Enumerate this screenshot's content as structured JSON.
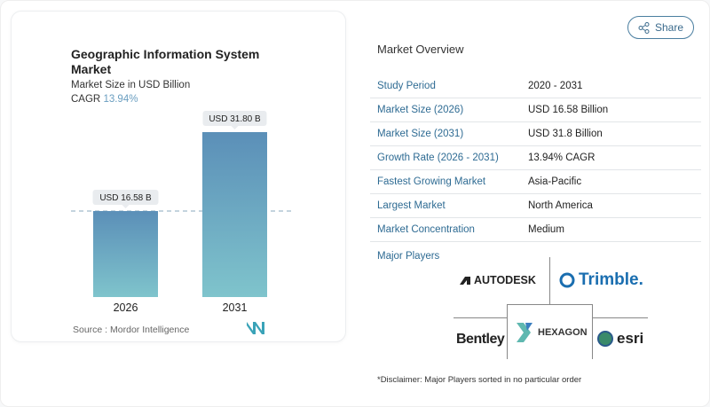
{
  "header": {
    "share_label": "Share",
    "share_icon": "share-icon"
  },
  "chart_data": {
    "type": "bar",
    "title": "Geographic Information System Market",
    "subtitle": "Market Size in USD Billion",
    "cagr_label": "CAGR",
    "cagr_value": "13.94%",
    "categories": [
      "2026",
      "2031"
    ],
    "values": [
      16.58,
      31.8
    ],
    "data_labels": [
      "USD 16.58 B",
      "USD 31.80 B"
    ],
    "colors": {
      "top": "#5b8fb8",
      "bottom": "#7fc4cc"
    },
    "source": "Source :  Mordor Intelligence"
  },
  "overview": {
    "title": "Market Overview",
    "rows": [
      {
        "label": "Study Period",
        "value": "2020 - 2031"
      },
      {
        "label": "Market Size (2026)",
        "value": "USD 16.58 Billion"
      },
      {
        "label": "Market Size (2031)",
        "value": "USD 31.8 Billion"
      },
      {
        "label": "Growth Rate (2026 - 2031)",
        "value": "13.94% CAGR"
      },
      {
        "label": "Fastest Growing Market",
        "value": "Asia-Pacific"
      },
      {
        "label": "Largest Market",
        "value": "North America"
      },
      {
        "label": "Market Concentration",
        "value": "Medium"
      }
    ]
  },
  "players": {
    "title": "Major Players",
    "logos": [
      "AUTODESK",
      "Trimble.",
      "Bentley",
      "HEXAGON",
      "esri"
    ]
  },
  "disclaimer": "*Disclaimer: Major Players sorted in no particular order"
}
